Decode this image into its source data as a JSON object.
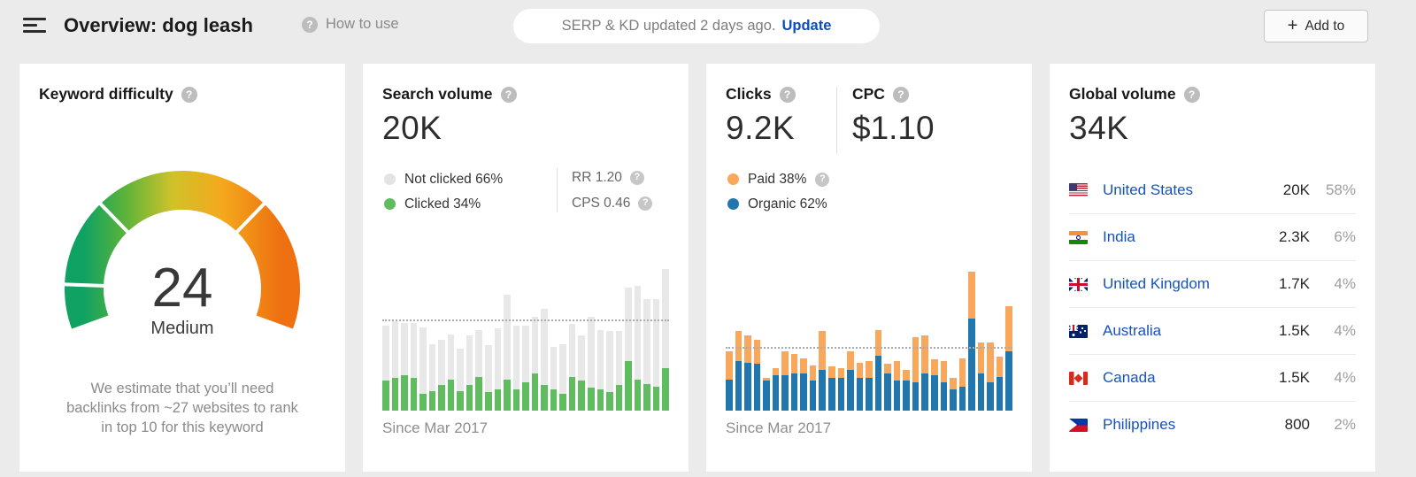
{
  "header": {
    "title": "Overview: dog leash",
    "help_label": "How to use",
    "update_pill_text": "SERP & KD updated 2 days ago.",
    "update_action": "Update",
    "add_to_label": "Add to"
  },
  "kd": {
    "title": "Keyword difficulty",
    "score": "24",
    "level": "Medium",
    "note_line1": "We estimate that you’ll need",
    "note_line2": "backlinks from ~27 websites to rank",
    "note_line3": "in top 10 for this keyword",
    "gauge": {
      "min": 0,
      "max": 100,
      "value": 24,
      "segment_boundaries": [
        10,
        30,
        70
      ],
      "colors": [
        "#0fa263",
        "#58b23b",
        "#cfc22a",
        "#f4a91c",
        "#ee7011"
      ]
    }
  },
  "search_volume": {
    "title": "Search volume",
    "value": "20K",
    "legend": [
      {
        "label": "Not clicked 66%",
        "color": "#e3e3e3"
      },
      {
        "label": "Clicked 34%",
        "color": "#5fbc5f"
      }
    ],
    "stat1": "RR 1.20",
    "stat2": "CPS 0.46",
    "since_label": "Since Mar 2017"
  },
  "clicks": {
    "title": "Clicks",
    "value": "9.2K",
    "cpc_title": "CPC",
    "cpc_value": "$1.10",
    "legend": [
      {
        "label": "Paid 38%",
        "color": "#f9a75a"
      },
      {
        "label": "Organic 62%",
        "color": "#2176ae"
      }
    ],
    "since_label": "Since Mar 2017"
  },
  "global_volume": {
    "title": "Global volume",
    "value": "34K",
    "rows": [
      {
        "country": "United States",
        "flag": "us-flag",
        "volume": "20K",
        "share": "58%"
      },
      {
        "country": "India",
        "flag": "india-flag",
        "volume": "2.3K",
        "share": "6%"
      },
      {
        "country": "United Kingdom",
        "flag": "uk-flag",
        "volume": "1.7K",
        "share": "4%"
      },
      {
        "country": "Australia",
        "flag": "australia-flag",
        "volume": "1.5K",
        "share": "4%"
      },
      {
        "country": "Canada",
        "flag": "canada-flag",
        "volume": "1.5K",
        "share": "4%"
      },
      {
        "country": "Philippines",
        "flag": "philippines-flag",
        "volume": "800",
        "share": "2%"
      }
    ]
  },
  "chart_data": [
    {
      "type": "bar",
      "stacked": true,
      "title": "Monthly search volume (stacked: clicked / not clicked)",
      "x_note": "Since Mar 2017",
      "unit": "percent of tallest bar",
      "avg_line_pct": 63,
      "series": [
        {
          "name": "Clicked",
          "role": "bottom",
          "color": "#5fbc5f",
          "values": [
            21,
            23,
            25,
            23,
            12,
            14,
            18,
            22,
            14,
            18,
            24,
            13,
            15,
            22,
            15,
            20,
            26,
            18,
            15,
            12,
            24,
            21,
            16,
            15,
            13,
            18,
            35,
            22,
            19,
            17,
            30
          ]
        },
        {
          "name": "Not clicked",
          "role": "top",
          "color": "#e8e8e8",
          "values": [
            39,
            40,
            37,
            39,
            47,
            33,
            32,
            32,
            30,
            35,
            33,
            33,
            43,
            60,
            45,
            40,
            40,
            54,
            30,
            35,
            37,
            32,
            50,
            42,
            43,
            38,
            52,
            66,
            60,
            62,
            70
          ]
        }
      ]
    },
    {
      "type": "bar",
      "stacked": true,
      "title": "Monthly clicks (stacked: organic / paid)",
      "x_note": "Since Mar 2017",
      "unit": "percent of tallest bar",
      "avg_line_pct": 44,
      "series": [
        {
          "name": "Organic",
          "role": "bottom",
          "color": "#2176ae",
          "values": [
            22,
            35,
            34,
            33,
            21,
            25,
            25,
            26,
            26,
            21,
            29,
            23,
            23,
            29,
            23,
            23,
            39,
            26,
            21,
            21,
            20,
            26,
            25,
            20,
            15,
            17,
            65,
            26,
            20,
            24,
            42
          ]
        },
        {
          "name": "Paid",
          "role": "top",
          "color": "#f9a75a",
          "values": [
            20,
            21,
            19,
            17,
            2,
            5,
            17,
            14,
            11,
            11,
            27,
            8,
            7,
            13,
            11,
            12,
            18,
            7,
            14,
            8,
            32,
            27,
            11,
            15,
            8,
            20,
            33,
            22,
            28,
            14,
            32
          ]
        }
      ]
    }
  ]
}
